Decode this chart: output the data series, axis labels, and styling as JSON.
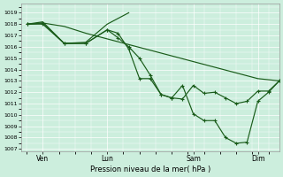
{
  "bg_color": "#cceedd",
  "grid_color": "#ffffff",
  "line_color": "#1a5c1a",
  "title": "Pression niveau de la mer( hPa )",
  "ylim": [
    1006.8,
    1019.8
  ],
  "yticks": [
    1007,
    1008,
    1009,
    1010,
    1011,
    1012,
    1013,
    1014,
    1015,
    1016,
    1017,
    1018,
    1019
  ],
  "xtick_labels": [
    "Ven",
    "Lun",
    "Sam",
    "Dim"
  ],
  "xtick_pos": [
    14,
    56,
    112,
    154
  ],
  "xlim": [
    0,
    168
  ],
  "line_straight_x": [
    4,
    14,
    28,
    42,
    56,
    70,
    84,
    98,
    112,
    126,
    140,
    154,
    168
  ],
  "line_straight_y": [
    1018.0,
    1018.1,
    1017.8,
    1017.2,
    1016.7,
    1016.2,
    1015.7,
    1015.2,
    1014.7,
    1014.2,
    1013.7,
    1013.2,
    1013.0
  ],
  "line_wavy_x": [
    4,
    14,
    28,
    42,
    56,
    63,
    70,
    77,
    84,
    91,
    98,
    105,
    112,
    119,
    126,
    133,
    140,
    147,
    154,
    161,
    168
  ],
  "line_wavy_y": [
    1018.0,
    1018.1,
    1016.3,
    1016.3,
    1017.5,
    1017.2,
    1015.8,
    1013.2,
    1013.2,
    1011.8,
    1011.5,
    1012.6,
    1010.1,
    1009.5,
    1009.5,
    1008.0,
    1007.5,
    1007.6,
    1011.2,
    1012.0,
    1013.0
  ],
  "line_mid_x": [
    4,
    14,
    28,
    42,
    56,
    63,
    70,
    77,
    84,
    91,
    98,
    105,
    112,
    119,
    126,
    133,
    140,
    147,
    154,
    161,
    168
  ],
  "line_mid_y": [
    1018.0,
    1018.0,
    1016.3,
    1016.3,
    1017.5,
    1016.8,
    1016.0,
    1015.0,
    1013.5,
    1011.8,
    1011.5,
    1011.4,
    1012.6,
    1011.9,
    1012.0,
    1011.5,
    1011.0,
    1011.2,
    1012.1,
    1012.1,
    1013.0
  ],
  "line_top_x": [
    4,
    14,
    28,
    42,
    56,
    63,
    70
  ],
  "line_top_y": [
    1018.0,
    1018.2,
    1016.3,
    1016.4,
    1018.0,
    1018.5,
    1019.0
  ]
}
